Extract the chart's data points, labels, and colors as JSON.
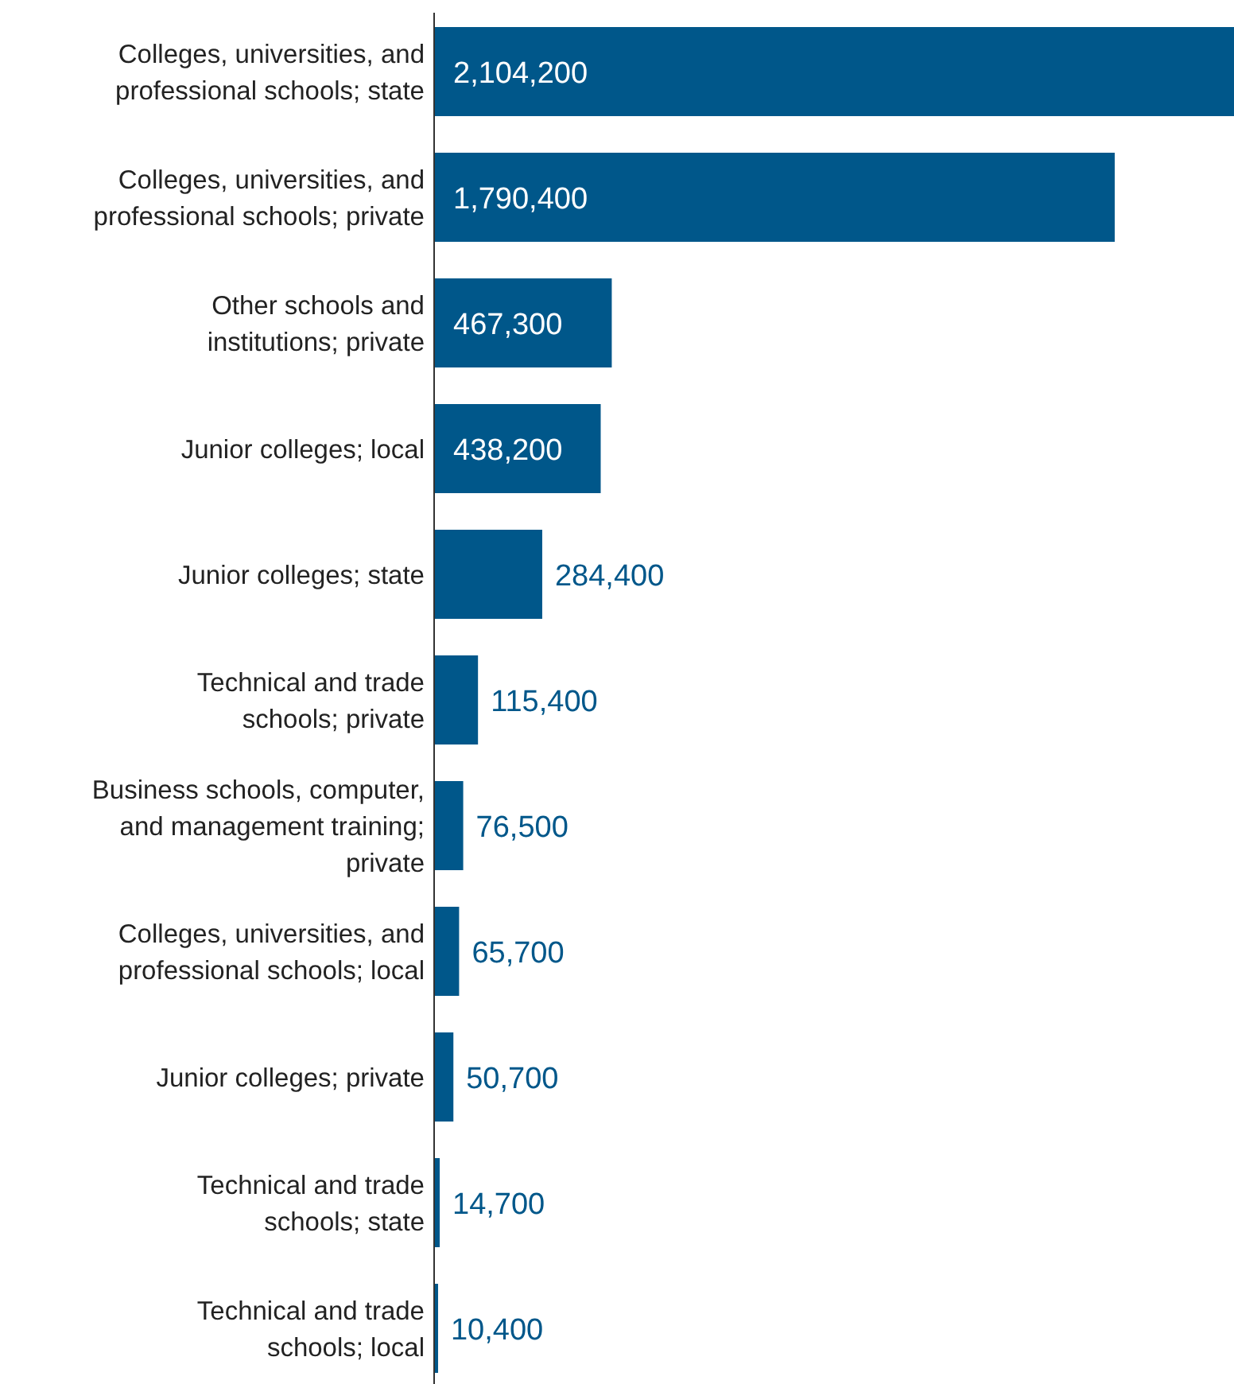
{
  "chart_data": {
    "type": "bar",
    "orientation": "horizontal",
    "relative": false,
    "categories": [
      "Colleges, universities, and professional schools; state",
      "Colleges, universities, and professional schools; private",
      "Other schools and institutions; private",
      "Junior colleges; local",
      "Junior colleges; state",
      "Technical and trade schools; private",
      "Business schools, computer, and management training; private",
      "Colleges, universities, and professional schools; local",
      "Junior colleges; private",
      "Technical and trade schools; state",
      "Technical and trade schools; local"
    ],
    "values": [
      2104200,
      1790400,
      467300,
      438200,
      284400,
      115400,
      76500,
      65700,
      50700,
      14700,
      10400
    ],
    "value_labels": [
      "2,104,200",
      "1,790,400",
      "467,300",
      "438,200",
      "284,400",
      "115,400",
      "76,500",
      "65,700",
      "50,700",
      "14,700",
      "10,400"
    ],
    "color": "#00578a"
  }
}
